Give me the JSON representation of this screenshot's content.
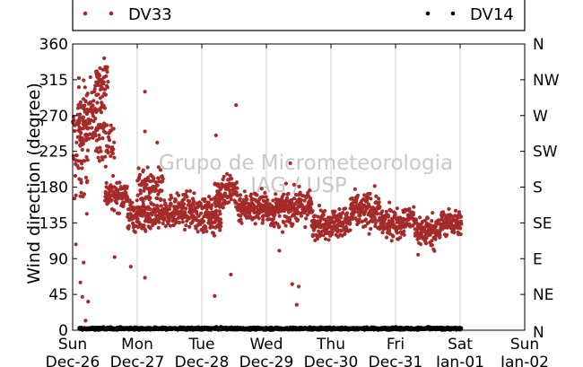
{
  "chart_data": {
    "type": "scatter",
    "title": "",
    "xlabel": "",
    "ylabel": "Wind direction (degree)",
    "ylim": [
      0,
      360
    ],
    "yticks": [
      0,
      45,
      90,
      135,
      180,
      225,
      270,
      315,
      360
    ],
    "compass_ticks": [
      "N",
      "NE",
      "E",
      "SE",
      "S",
      "SW",
      "W",
      "NW",
      "N"
    ],
    "x_ticks": [
      {
        "day": "Sun",
        "date": "Dec-26"
      },
      {
        "day": "Mon",
        "date": "Dec-27"
      },
      {
        "day": "Tue",
        "date": "Dec-28"
      },
      {
        "day": "Wed",
        "date": "Dec-29"
      },
      {
        "day": "Thu",
        "date": "Dec-30"
      },
      {
        "day": "Fri",
        "date": "Dec-31"
      },
      {
        "day": "Sat",
        "date": "Jan-01"
      },
      {
        "day": "Sun",
        "date": "Jan-02"
      }
    ],
    "xlim_days": [
      0,
      7
    ],
    "grid": "vertical",
    "legend_position": "top",
    "watermark": [
      "Grupo de Micrometeorologia",
      "IAG / USP"
    ],
    "series": [
      {
        "name": "DV33",
        "color": "#a52a2a",
        "segments": [
          [
            0.0,
            0.25,
            225,
            70,
            0.8
          ],
          [
            0.08,
            0.5,
            265,
            45,
            1.0
          ],
          [
            0.35,
            0.55,
            315,
            25,
            0.7
          ],
          [
            0.5,
            0.65,
            240,
            30,
            0.6
          ],
          [
            0.5,
            0.85,
            170,
            18,
            0.9
          ],
          [
            0.85,
            1.3,
            145,
            20,
            1.0
          ],
          [
            1.0,
            1.4,
            180,
            20,
            0.6
          ],
          [
            1.3,
            1.9,
            150,
            20,
            1.0
          ],
          [
            1.9,
            2.3,
            145,
            22,
            1.0
          ],
          [
            2.2,
            2.55,
            175,
            25,
            0.8
          ],
          [
            2.55,
            3.0,
            155,
            20,
            1.0
          ],
          [
            3.0,
            3.3,
            150,
            20,
            1.0
          ],
          [
            3.3,
            3.7,
            155,
            20,
            1.0
          ],
          [
            3.7,
            4.3,
            135,
            18,
            1.0
          ],
          [
            4.3,
            4.75,
            150,
            22,
            1.0
          ],
          [
            4.75,
            5.15,
            135,
            18,
            1.0
          ],
          [
            5.15,
            5.3,
            140,
            15,
            0.8
          ],
          [
            5.3,
            5.7,
            125,
            20,
            0.9
          ],
          [
            5.7,
            6.02,
            135,
            15,
            1.0
          ]
        ],
        "outliers": [
          [
            0.05,
            108
          ],
          [
            0.12,
            60
          ],
          [
            0.15,
            42
          ],
          [
            0.17,
            85
          ],
          [
            0.2,
            12
          ],
          [
            0.24,
            36
          ],
          [
            0.65,
            92
          ],
          [
            0.9,
            80
          ],
          [
            1.12,
            300
          ],
          [
            1.12,
            66
          ],
          [
            1.12,
            250
          ],
          [
            1.31,
            236
          ],
          [
            2.2,
            43
          ],
          [
            2.22,
            245
          ],
          [
            2.45,
            70
          ],
          [
            2.53,
            283
          ],
          [
            3.2,
            100
          ],
          [
            3.37,
            210
          ],
          [
            3.4,
            58
          ],
          [
            3.47,
            32
          ],
          [
            3.5,
            55
          ],
          [
            5.35,
            95
          ]
        ]
      },
      {
        "name": "DV14",
        "color": "#000000",
        "segments": [
          [
            0.1,
            6.02,
            2,
            1.5,
            1.0
          ]
        ],
        "outliers": []
      }
    ]
  }
}
